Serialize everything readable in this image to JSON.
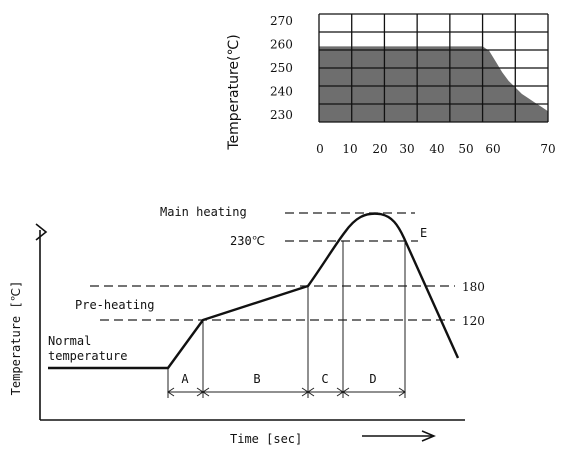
{
  "chart_data": [
    {
      "type": "area",
      "ylabel": "Temperature(℃)",
      "xlabel": "",
      "x_ticks": [
        "0",
        "10",
        "20",
        "30",
        "40",
        "50",
        "60",
        "70"
      ],
      "y_ticks": [
        "270",
        "260",
        "250",
        "240",
        "230"
      ],
      "ylim": [
        225,
        275
      ],
      "grid": true,
      "colors": {
        "fill": "#6e6e6e",
        "grid": "#111111"
      },
      "series": [
        {
          "points": [
            [
              0,
              260
            ],
            [
              10,
              260
            ],
            [
              20,
              260
            ],
            [
              30,
              260
            ],
            [
              40,
              260
            ],
            [
              50,
              260
            ],
            [
              52,
              258
            ],
            [
              54,
              253
            ],
            [
              56,
              248
            ],
            [
              58,
              244
            ],
            [
              60,
              241
            ],
            [
              62,
              238
            ],
            [
              64,
              236
            ],
            [
              66,
              234
            ],
            [
              68,
              232
            ],
            [
              70,
              230
            ]
          ]
        }
      ]
    },
    {
      "type": "line",
      "xlabel": "Time [sec]",
      "ylabel": "Temperature [℃]",
      "y_ticks": [
        "180",
        "120"
      ],
      "annotations": {
        "main_heating": "Main heating",
        "peak_230": "230℃",
        "pre_heating": "Pre-heating",
        "normal_1": "Normal",
        "normal_2": "temperature",
        "E": "E"
      },
      "zones": [
        "A",
        "B",
        "C",
        "D"
      ],
      "profile": [
        [
          "start",
          25
        ],
        [
          "A_start",
          25
        ],
        [
          "A_end",
          120
        ],
        [
          "B_end",
          180
        ],
        [
          "C_end",
          230
        ],
        [
          "peak",
          250
        ],
        [
          "E",
          230
        ],
        [
          "end",
          50
        ]
      ]
    }
  ]
}
